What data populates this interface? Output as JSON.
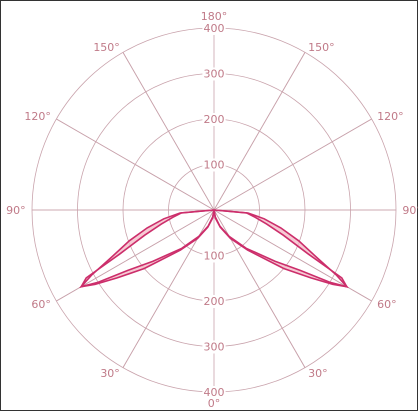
{
  "chart_data": {
    "type": "polar-area",
    "title": "",
    "angle_unit": "degrees",
    "radial_range": [
      0,
      400
    ],
    "radial_ticks": [
      100,
      200,
      300,
      400
    ],
    "angle_tick_labels": {
      "bottom": "0°",
      "top": "180°",
      "left_lower_1": "30°",
      "left_lower_2": "60°",
      "left_middle": "90°",
      "left_upper_1": "120°",
      "left_upper_2": "150°",
      "right_lower_1": "30°",
      "right_lower_2": "60°",
      "right_middle": "90°",
      "right_upper_1": "120°",
      "right_upper_2": "150°"
    },
    "radial_tick_labels_top": [
      "100",
      "200",
      "300",
      "400"
    ],
    "radial_tick_labels_bottom": [
      "100",
      "200",
      "300",
      "400"
    ],
    "grid": true,
    "grid_angle_step_deg": 30,
    "series": [
      {
        "color": "#cc2e6b",
        "fill": "#f4b8c6",
        "outer": [
          [
            0,
            0
          ],
          [
            10,
            15
          ],
          [
            20,
            38
          ],
          [
            30,
            67
          ],
          [
            40,
            110
          ],
          [
            50,
            175
          ],
          [
            55,
            232
          ],
          [
            58,
            300
          ],
          [
            60,
            337
          ],
          [
            62,
            318
          ],
          [
            65,
            228
          ],
          [
            70,
            162
          ],
          [
            75,
            120
          ],
          [
            80,
            92
          ],
          [
            85,
            72
          ],
          [
            90,
            0
          ]
        ],
        "inner": [
          [
            0,
            0
          ],
          [
            10,
            18
          ],
          [
            20,
            40
          ],
          [
            30,
            72
          ],
          [
            40,
            115
          ],
          [
            50,
            200
          ],
          [
            55,
            260
          ],
          [
            58,
            308
          ],
          [
            60,
            337
          ],
          [
            62,
            305
          ],
          [
            65,
            252
          ],
          [
            70,
            198
          ],
          [
            75,
            152
          ],
          [
            80,
            112
          ],
          [
            85,
            75
          ],
          [
            90,
            0
          ]
        ]
      }
    ]
  }
}
